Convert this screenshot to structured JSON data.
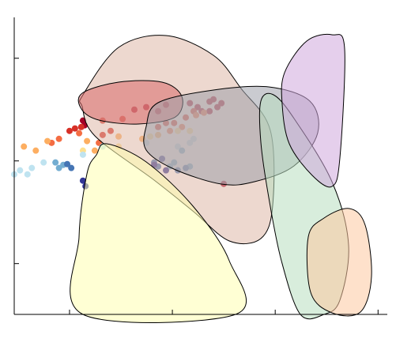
{
  "chart_data": {
    "type": "scatter",
    "xscale": "log",
    "yscale": "log",
    "xlim": [
      0.29,
      1230
    ],
    "ylim": [
      0.32,
      250
    ],
    "xticks": [
      1,
      10,
      100,
      1000
    ],
    "yticks": [
      1,
      10,
      100
    ],
    "series": [
      {
        "color": "#a50026",
        "x": [
          1.35,
          1.4,
          4.27,
          5.57,
          7.27,
          8.67,
          14.8,
          17.6,
          23,
          25.1,
          27.4,
          30,
          23,
          19.3,
          31.6
        ],
        "values": [
          24.7,
          22.2,
          31.6,
          33.4,
          30.5,
          35.2,
          36.5,
          33.4,
          37.8,
          39.8,
          33.4,
          36.5,
          30.5,
          30.5,
          5.98
        ]
      },
      {
        "color": "#d73027",
        "x": [
          1,
          1.13,
          1.3,
          2.1,
          3.28,
          2.51,
          2.1,
          7.27,
          8.67,
          10.4,
          13.5,
          16.1
        ],
        "values": [
          19.6,
          20.7,
          21.4,
          24.7,
          25.6,
          19.6,
          17.9,
          21.4,
          23.4,
          23.4,
          26.5,
          30.5
        ]
      },
      {
        "color": "#f46d43",
        "x": [
          0.79,
          0.67,
          1.24,
          1.93,
          9.48,
          12.4,
          17,
          20.3
        ],
        "values": [
          16.4,
          15,
          18.6,
          15,
          19.6,
          21.4,
          27.9,
          29.5
        ]
      },
      {
        "color": "#fdae61",
        "x": [
          0.36,
          0.47,
          0.61,
          1.48,
          3.0,
          5.1,
          7.27,
          1.76
        ],
        "values": [
          13.8,
          12.6,
          15.6,
          15.6,
          17.3,
          16.4,
          17.9,
          12.6
        ]
      },
      {
        "color": "#fee090",
        "x": [
          1.35,
          3.0,
          6.09,
          14.8,
          11.3
        ],
        "values": [
          12.6,
          13.8,
          17.3,
          19.6,
          19.6
        ]
      },
      {
        "color": "#bfe3f0",
        "x": [
          0.29,
          0.33,
          0.39,
          0.43,
          2.1,
          5.57,
          11.3,
          14.8,
          16.1,
          1.35,
          0.56
        ],
        "values": [
          7.4,
          8.09,
          7.4,
          8.53,
          13.8,
          15,
          13.8,
          15,
          16.4,
          11.5,
          9.66
        ]
      },
      {
        "color": "#74add1",
        "x": [
          0.73,
          0.79,
          0.87,
          10.4,
          12.4,
          14.8,
          9.48
        ],
        "values": [
          9.66,
          8.53,
          9.15,
          9.66,
          12.6,
          8.83,
          8.83
        ]
      },
      {
        "color": "#4575b4",
        "x": [
          0.95,
          1.04,
          6.65,
          13.5,
          11.3,
          7.27
        ],
        "values": [
          9.31,
          8.53,
          9.66,
          8.53,
          8.09,
          8.83
        ]
      },
      {
        "color": "#313695",
        "x": [
          1.35,
          1.43,
          6.65,
          8.67,
          7.94
        ],
        "values": [
          6.42,
          5.67,
          9.15,
          8.09,
          10.5
        ]
      }
    ]
  }
}
